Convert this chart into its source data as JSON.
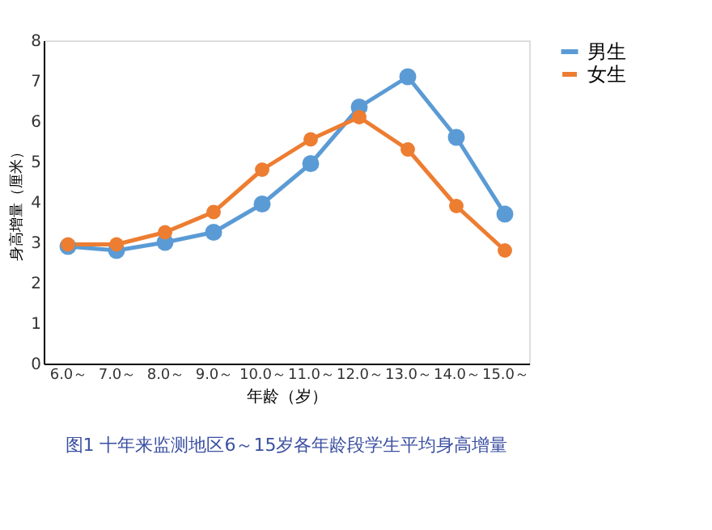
{
  "chart_data": {
    "type": "line",
    "xlabel": "年龄（岁）",
    "ylabel": "身高增量（厘米）",
    "categories": [
      "6.0～",
      "7.0～",
      "8.0～",
      "9.0～",
      "10.0～",
      "11.0～",
      "12.0～",
      "13.0～",
      "14.0～",
      "15.0～"
    ],
    "series": [
      {
        "name": "男生",
        "color": "#5b9bd5",
        "values": [
          2.9,
          2.8,
          3.0,
          3.25,
          3.95,
          4.95,
          6.35,
          7.1,
          5.6,
          3.7
        ]
      },
      {
        "name": "女生",
        "color": "#ed7d31",
        "values": [
          2.95,
          2.95,
          3.25,
          3.75,
          4.8,
          5.55,
          6.1,
          5.3,
          3.9,
          2.8
        ]
      }
    ],
    "ylim": [
      0,
      8
    ],
    "yticks": [
      0,
      1,
      2,
      3,
      4,
      5,
      6,
      7,
      8
    ],
    "grid": false,
    "legend": "top right",
    "marker": "circle",
    "line_style": "solid",
    "annotations": [
      "图1 十年来监测地区6～15岁各年龄段学生平均身高增量"
    ]
  }
}
